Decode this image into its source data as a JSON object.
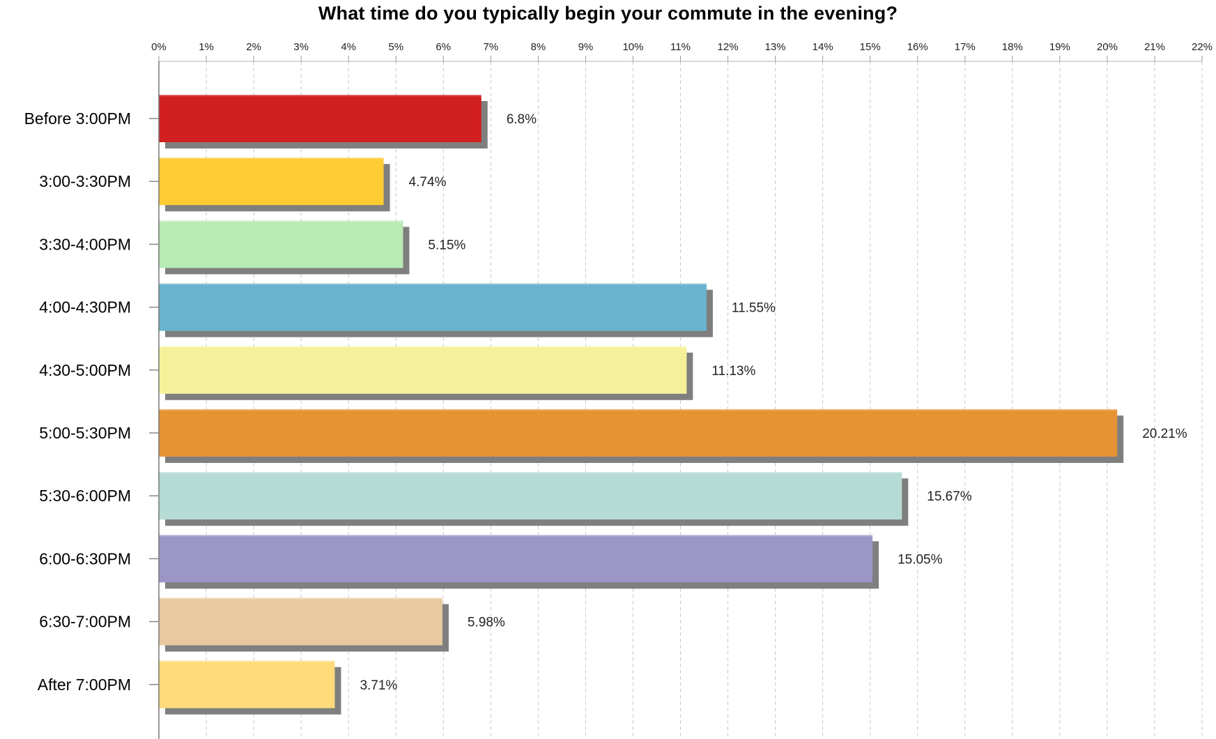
{
  "chart_data": {
    "type": "bar",
    "orientation": "horizontal",
    "title": "What time do you typically begin your commute in the evening?",
    "xlabel": "",
    "ylabel": "",
    "xlim": [
      0,
      22
    ],
    "x_tick_values": [
      0,
      1,
      2,
      3,
      4,
      5,
      6,
      7,
      8,
      9,
      10,
      11,
      12,
      13,
      14,
      15,
      16,
      17,
      18,
      19,
      20,
      21,
      22
    ],
    "x_tick_labels": [
      "0%",
      "1%",
      "2%",
      "3%",
      "4%",
      "5%",
      "6%",
      "7%",
      "8%",
      "9%",
      "10%",
      "11%",
      "12%",
      "13%",
      "14%",
      "15%",
      "16%",
      "17%",
      "18%",
      "19%",
      "20%",
      "21%",
      "22%"
    ],
    "x_axis_position": "top",
    "grid": true,
    "grid_style": "dashed-vertical",
    "legend": false,
    "categories": [
      "Before 3:00PM",
      "3:00-3:30PM",
      "3:30-4:00PM",
      "4:00-4:30PM",
      "4:30-5:00PM",
      "5:00-5:30PM",
      "5:30-6:00PM",
      "6:00-6:30PM",
      "6:30-7:00PM",
      "After 7:00PM"
    ],
    "values": [
      6.8,
      4.74,
      5.15,
      11.55,
      11.13,
      20.21,
      15.67,
      15.05,
      5.98,
      3.71
    ],
    "value_labels": [
      "6.8%",
      "4.74%",
      "5.15%",
      "11.55%",
      "11.13%",
      "20.21%",
      "15.67%",
      "15.05%",
      "5.98%",
      "3.71%"
    ],
    "colors": [
      "#d21f1f",
      "#ffcb33",
      "#b8eab5",
      "#6ab4cf",
      "#f6f09a",
      "#e69433",
      "#b5dbd4",
      "#9b96c6",
      "#e8c9a0",
      "#ffdb7a"
    ],
    "shadow_color": "#7f7f7f"
  }
}
